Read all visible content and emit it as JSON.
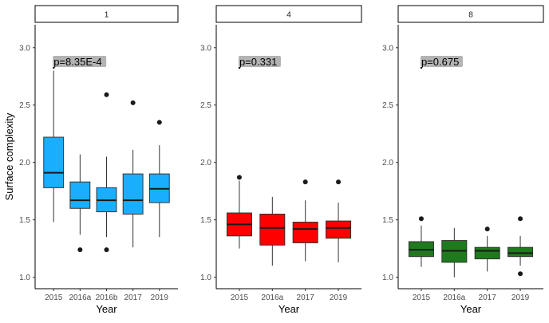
{
  "chart_data": {
    "type": "boxplot",
    "facet_strip_labels": [
      "1",
      "4",
      "8"
    ],
    "xlabel": "Year",
    "ylabel": "Surface complexity",
    "ylim": [
      0.9,
      3.2
    ],
    "yticks": [
      1.0,
      1.5,
      2.0,
      2.5,
      3.0
    ],
    "ytick_labels": [
      "1.0",
      "1.5",
      "2.0",
      "2.5",
      "3.0"
    ],
    "grid": false,
    "legend": "none",
    "panels": [
      {
        "strip": "1",
        "fill_color": "#1aaeff",
        "annotation": "p=8.35E-4",
        "annotation_y": 2.88,
        "categories": [
          "2015",
          "2016a",
          "2016b",
          "2017",
          "2019"
        ],
        "boxes": [
          {
            "min": 1.48,
            "q1": 1.78,
            "median": 1.91,
            "q3": 2.22,
            "max": 2.8,
            "outliers": []
          },
          {
            "min": 1.37,
            "q1": 1.6,
            "median": 1.67,
            "q3": 1.83,
            "max": 2.07,
            "outliers": [
              1.24
            ]
          },
          {
            "min": 1.35,
            "q1": 1.57,
            "median": 1.67,
            "q3": 1.78,
            "max": 2.05,
            "outliers": [
              2.59,
              1.24
            ]
          },
          {
            "min": 1.26,
            "q1": 1.55,
            "median": 1.67,
            "q3": 1.9,
            "max": 2.11,
            "outliers": [
              2.52
            ]
          },
          {
            "min": 1.35,
            "q1": 1.65,
            "median": 1.77,
            "q3": 1.9,
            "max": 2.15,
            "outliers": [
              2.35
            ]
          }
        ]
      },
      {
        "strip": "4",
        "fill_color": "#ff0000",
        "annotation": "p=0.331",
        "annotation_y": 2.88,
        "categories": [
          "2015",
          "2016a",
          "2017",
          "2019"
        ],
        "boxes": [
          {
            "min": 1.25,
            "q1": 1.36,
            "median": 1.46,
            "q3": 1.56,
            "max": 1.84,
            "outliers": [
              1.87
            ]
          },
          {
            "min": 1.1,
            "q1": 1.28,
            "median": 1.43,
            "q3": 1.55,
            "max": 1.7,
            "outliers": []
          },
          {
            "min": 1.14,
            "q1": 1.3,
            "median": 1.42,
            "q3": 1.48,
            "max": 1.67,
            "outliers": [
              1.83
            ]
          },
          {
            "min": 1.13,
            "q1": 1.34,
            "median": 1.43,
            "q3": 1.49,
            "max": 1.65,
            "outliers": [
              1.83
            ]
          }
        ]
      },
      {
        "strip": "8",
        "fill_color": "#1f7a1f",
        "annotation": "p=0.675",
        "annotation_y": 2.88,
        "categories": [
          "2015",
          "2016a",
          "2017",
          "2019"
        ],
        "boxes": [
          {
            "min": 1.09,
            "q1": 1.18,
            "median": 1.24,
            "q3": 1.31,
            "max": 1.45,
            "outliers": [
              1.51
            ]
          },
          {
            "min": 1.0,
            "q1": 1.13,
            "median": 1.23,
            "q3": 1.32,
            "max": 1.43,
            "outliers": []
          },
          {
            "min": 1.05,
            "q1": 1.16,
            "median": 1.23,
            "q3": 1.26,
            "max": 1.36,
            "outliers": [
              1.42
            ]
          },
          {
            "min": 1.1,
            "q1": 1.18,
            "median": 1.21,
            "q3": 1.26,
            "max": 1.36,
            "outliers": [
              1.51,
              1.03
            ]
          }
        ]
      }
    ]
  }
}
